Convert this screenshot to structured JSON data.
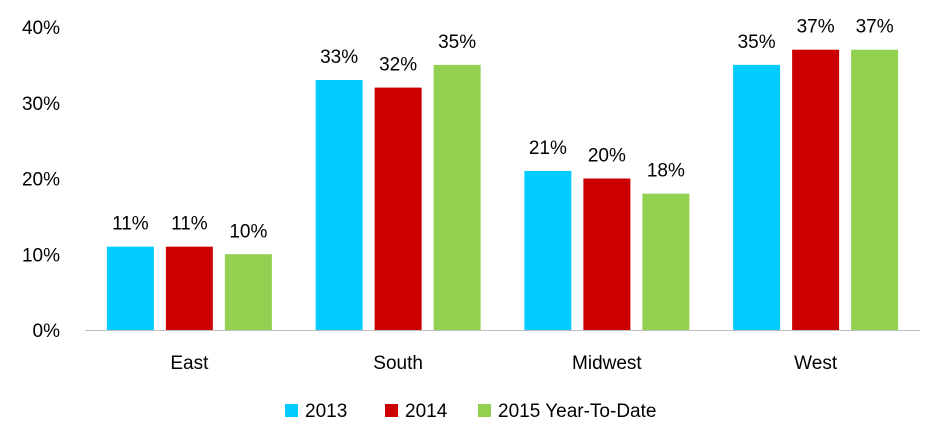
{
  "chart_data": {
    "type": "bar",
    "title": "",
    "xlabel": "",
    "ylabel": "",
    "categories": [
      "East",
      "South",
      "Midwest",
      "West"
    ],
    "series": [
      {
        "name": "2013",
        "color": "#00CCFF",
        "values": [
          11,
          33,
          21,
          35
        ],
        "labels": [
          "11%",
          "33%",
          "21%",
          "35%"
        ]
      },
      {
        "name": "2014",
        "color": "#CC0000",
        "values": [
          11,
          32,
          20,
          37
        ],
        "labels": [
          "11%",
          "32%",
          "20%",
          "37%"
        ]
      },
      {
        "name": "2015 Year-To-Date",
        "color": "#92D050",
        "values": [
          10,
          35,
          18,
          37
        ],
        "labels": [
          "10%",
          "35%",
          "18%",
          "37%"
        ]
      }
    ],
    "ylim": [
      0,
      40
    ],
    "yticks": [
      {
        "value": 0,
        "label": "0%"
      },
      {
        "value": 10,
        "label": "10%"
      },
      {
        "value": 20,
        "label": "20%"
      },
      {
        "value": 30,
        "label": "30%"
      },
      {
        "value": 40,
        "label": "40%"
      }
    ],
    "grid": false,
    "legend_position": "bottom"
  }
}
